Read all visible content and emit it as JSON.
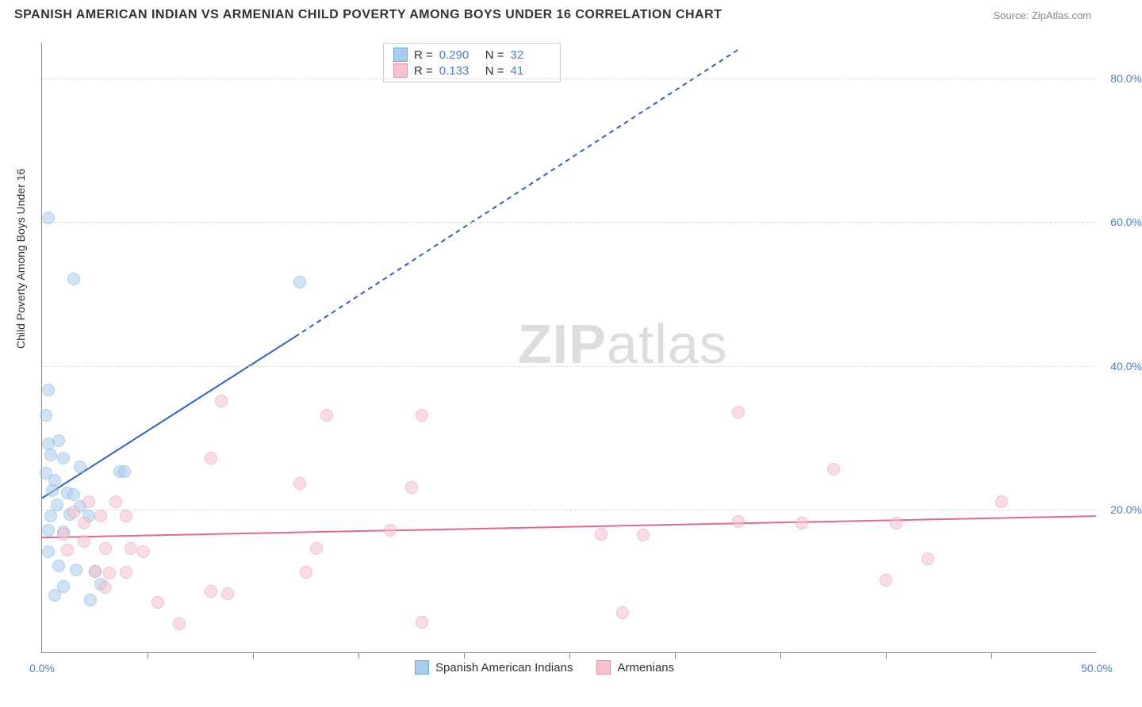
{
  "title": "SPANISH AMERICAN INDIAN VS ARMENIAN CHILD POVERTY AMONG BOYS UNDER 16 CORRELATION CHART",
  "source": "Source: ZipAtlas.com",
  "ylabel": "Child Poverty Among Boys Under 16",
  "watermark_bold": "ZIP",
  "watermark_rest": "atlas",
  "chart": {
    "type": "scatter",
    "xlim": [
      0,
      50
    ],
    "ylim": [
      0,
      85
    ],
    "yticks": [
      20,
      40,
      60,
      80
    ],
    "ytick_labels": [
      "20.0%",
      "40.0%",
      "60.0%",
      "80.0%"
    ],
    "xtick_labels": {
      "min": "0.0%",
      "max": "50.0%"
    },
    "xticks_minor": [
      5,
      10,
      15,
      20,
      25,
      30,
      35,
      40,
      45
    ],
    "grid_color": "#dddddd",
    "axis_color": "#888888",
    "label_color": "#4a7fd8",
    "marker_radius": 8,
    "marker_opacity": 0.55,
    "series": [
      {
        "id": "spanish",
        "name": "Spanish American Indians",
        "color_fill": "#a9cdf0",
        "color_stroke": "#6ea8e0",
        "R": "0.290",
        "N": "32",
        "trend": {
          "x1": 0,
          "y1": 21.5,
          "x2": 12,
          "y2": 44,
          "x_dash_end": 33,
          "y_dash_end": 84,
          "stroke": "#2c62c8",
          "width": 2
        },
        "points": [
          [
            0.3,
            60.5
          ],
          [
            1.5,
            52
          ],
          [
            12.2,
            51.5
          ],
          [
            0.3,
            36.5
          ],
          [
            0.2,
            33
          ],
          [
            0.8,
            29.5
          ],
          [
            0.3,
            29
          ],
          [
            0.4,
            27.5
          ],
          [
            1.0,
            27
          ],
          [
            1.8,
            25.8
          ],
          [
            0.2,
            25
          ],
          [
            0.6,
            24
          ],
          [
            3.7,
            25.2
          ],
          [
            3.9,
            25.2
          ],
          [
            0.5,
            22.5
          ],
          [
            1.2,
            22.2
          ],
          [
            1.5,
            22
          ],
          [
            0.7,
            20.5
          ],
          [
            1.8,
            20.3
          ],
          [
            0.4,
            19
          ],
          [
            1.3,
            19.2
          ],
          [
            2.2,
            19
          ],
          [
            0.3,
            17
          ],
          [
            1.0,
            16.8
          ],
          [
            0.3,
            14
          ],
          [
            0.8,
            12
          ],
          [
            1.6,
            11.5
          ],
          [
            2.5,
            11.3
          ],
          [
            2.8,
            9.5
          ],
          [
            0.6,
            8
          ],
          [
            2.3,
            7.3
          ],
          [
            1.0,
            9.2
          ]
        ]
      },
      {
        "id": "armenian",
        "name": "Armenians",
        "color_fill": "#f7c2ce",
        "color_stroke": "#e88ba3",
        "R": "0.133",
        "N": "41",
        "trend": {
          "x1": 0,
          "y1": 16,
          "x2": 50,
          "y2": 19,
          "stroke": "#e26a8f",
          "width": 2
        },
        "points": [
          [
            8.5,
            35
          ],
          [
            13.5,
            33
          ],
          [
            18,
            33
          ],
          [
            33,
            33.5
          ],
          [
            8,
            27
          ],
          [
            37.5,
            25.5
          ],
          [
            12.2,
            23.5
          ],
          [
            17.5,
            23
          ],
          [
            45.5,
            21
          ],
          [
            2.2,
            21
          ],
          [
            3.5,
            21
          ],
          [
            1.5,
            19.5
          ],
          [
            2.8,
            19
          ],
          [
            4.0,
            19
          ],
          [
            2.0,
            18
          ],
          [
            33,
            18.2
          ],
          [
            36,
            18
          ],
          [
            40.5,
            18
          ],
          [
            1.0,
            16.5
          ],
          [
            16.5,
            17
          ],
          [
            26.5,
            16.5
          ],
          [
            28.5,
            16.3
          ],
          [
            2.0,
            15.5
          ],
          [
            1.2,
            14.2
          ],
          [
            3.0,
            14.5
          ],
          [
            4.2,
            14.5
          ],
          [
            4.8,
            14
          ],
          [
            13,
            14.5
          ],
          [
            42,
            13
          ],
          [
            2.5,
            11.3
          ],
          [
            3.2,
            11
          ],
          [
            4.0,
            11.2
          ],
          [
            12.5,
            11.2
          ],
          [
            40,
            10
          ],
          [
            3.0,
            9
          ],
          [
            8.0,
            8.5
          ],
          [
            8.8,
            8.2
          ],
          [
            5.5,
            7
          ],
          [
            27.5,
            5.5
          ],
          [
            6.5,
            4
          ],
          [
            18,
            4.2
          ]
        ]
      }
    ]
  }
}
